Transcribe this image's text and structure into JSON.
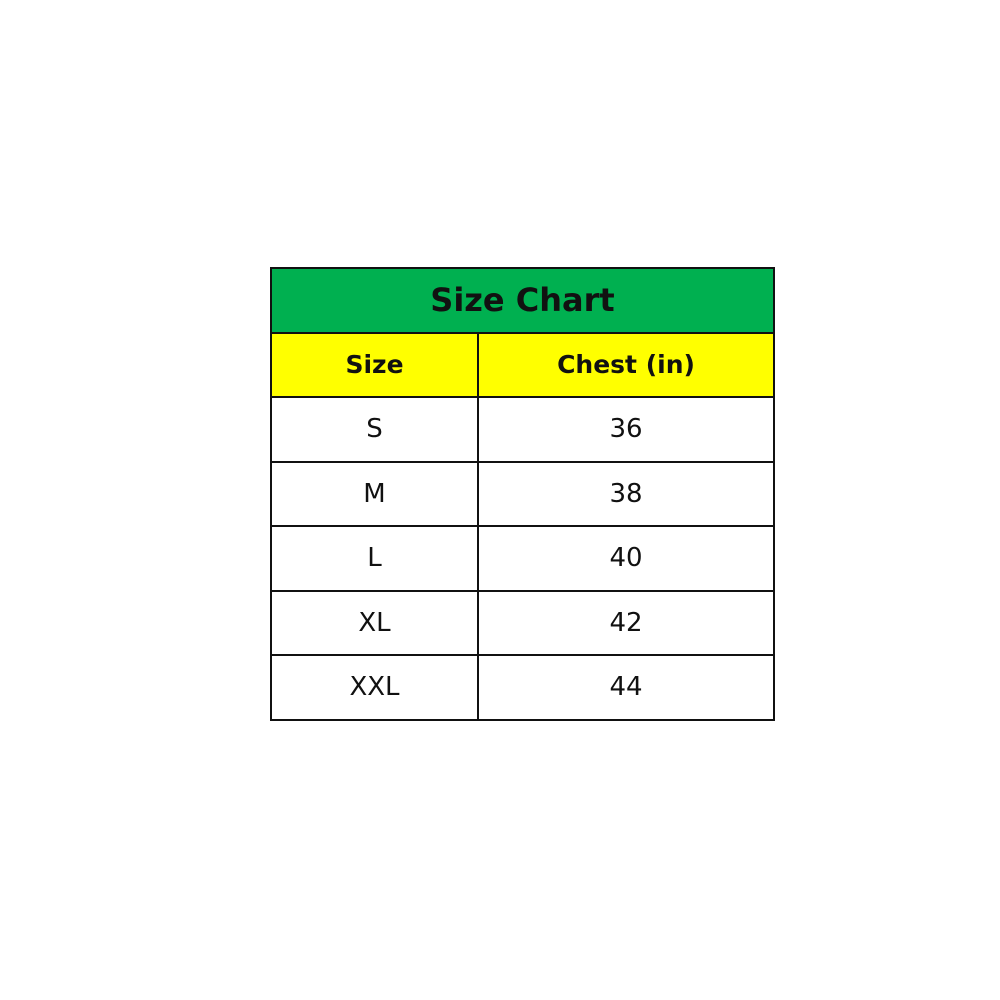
{
  "title": "Size Chart",
  "colors": {
    "title_bg": "#00B050",
    "header_bg": "#FFFF00"
  },
  "columns": [
    "Size",
    "Chest (in)"
  ],
  "rows": [
    [
      "S",
      "36"
    ],
    [
      "M",
      "38"
    ],
    [
      "L",
      "40"
    ],
    [
      "XL",
      "42"
    ],
    [
      "XXL",
      "44"
    ]
  ]
}
